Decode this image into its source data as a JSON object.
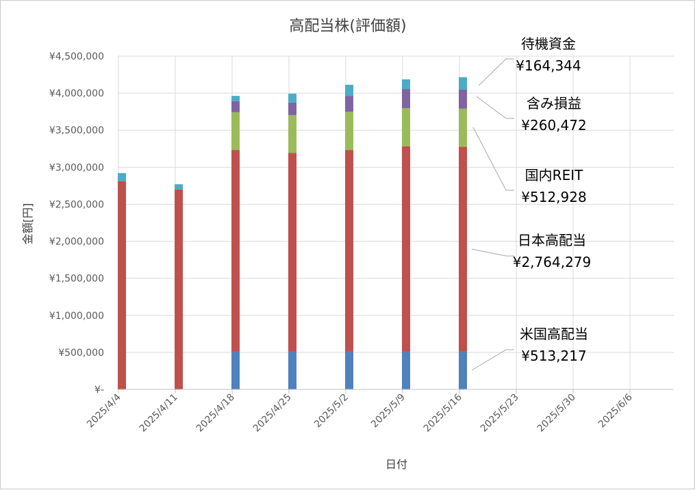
{
  "chart_data": {
    "type": "bar",
    "stacked": true,
    "title": "高配当株(評価額)",
    "xlabel": "日付",
    "ylabel": "金額[円]",
    "ylim": [
      0,
      4500000
    ],
    "grid": true,
    "x_ticks": [
      "2025/4/4",
      "2025/4/11",
      "2025/4/18",
      "2025/4/25",
      "2025/5/2",
      "2025/5/9",
      "2025/5/16",
      "2025/5/23",
      "2025/5/30",
      "2025/6/6"
    ],
    "y_ticks": [
      {
        "value": 0,
        "label": "¥-"
      },
      {
        "value": 500000,
        "label": "¥500,000"
      },
      {
        "value": 1000000,
        "label": "¥1,000,000"
      },
      {
        "value": 1500000,
        "label": "¥1,500,000"
      },
      {
        "value": 2000000,
        "label": "¥2,000,000"
      },
      {
        "value": 2500000,
        "label": "¥2,500,000"
      },
      {
        "value": 3000000,
        "label": "¥3,000,000"
      },
      {
        "value": 3500000,
        "label": "¥3,500,000"
      },
      {
        "value": 4000000,
        "label": "¥4,000,000"
      },
      {
        "value": 4500000,
        "label": "¥4,500,000"
      }
    ],
    "categories": [
      "2025/4/4",
      "2025/4/11",
      "2025/4/18",
      "2025/4/25",
      "2025/5/2",
      "2025/5/9",
      "2025/5/16"
    ],
    "series": [
      {
        "name": "米国高配当",
        "color": "#4f81bd",
        "values": [
          0,
          0,
          513000,
          513000,
          513000,
          513000,
          513217
        ]
      },
      {
        "name": "日本高配当",
        "color": "#c0504d",
        "values": [
          2810000,
          2700000,
          2720000,
          2680000,
          2720000,
          2770000,
          2764279
        ]
      },
      {
        "name": "国内REIT",
        "color": "#9bbb59",
        "values": [
          0,
          0,
          510000,
          510000,
          515000,
          513000,
          512928
        ]
      },
      {
        "name": "含み損益",
        "color": "#8064a2",
        "values": [
          0,
          0,
          150000,
          170000,
          215000,
          260000,
          260472
        ]
      },
      {
        "name": "待機資金",
        "color": "#4bacc6",
        "values": [
          110000,
          70000,
          70000,
          120000,
          150000,
          130000,
          164344
        ]
      }
    ],
    "annotations": [
      {
        "series": "待機資金",
        "name": "待機資金",
        "value": "¥164,344"
      },
      {
        "series": "含み損益",
        "name": "含み損益",
        "value": "¥260,472"
      },
      {
        "series": "国内REIT",
        "name": "国内REIT",
        "value": "¥512,928"
      },
      {
        "series": "日本高配当",
        "name": "日本高配当",
        "value": "¥2,764,279"
      },
      {
        "series": "米国高配当",
        "name": "米国高配当",
        "value": "¥513,217"
      }
    ]
  }
}
